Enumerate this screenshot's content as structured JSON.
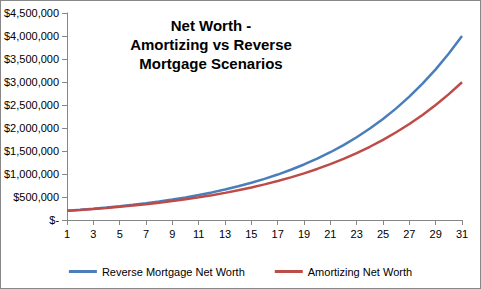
{
  "chart_data": {
    "type": "line",
    "title": "Net Worth -\nAmortizing vs Reverse\nMortgage Scenarios",
    "x": [
      1,
      2,
      3,
      4,
      5,
      6,
      7,
      8,
      9,
      10,
      11,
      12,
      13,
      14,
      15,
      16,
      17,
      18,
      19,
      20,
      21,
      22,
      23,
      24,
      25,
      26,
      27,
      28,
      29,
      30,
      31
    ],
    "xlim": [
      1,
      31
    ],
    "xticks": [
      1,
      3,
      5,
      7,
      9,
      11,
      13,
      15,
      17,
      19,
      21,
      23,
      25,
      27,
      29,
      31
    ],
    "ylim": [
      0,
      4500000
    ],
    "yticks": [
      {
        "value": 0,
        "label": "$-"
      },
      {
        "value": 500000,
        "label": "$500,000"
      },
      {
        "value": 1000000,
        "label": "$1,000,000"
      },
      {
        "value": 1500000,
        "label": "$1,500,000"
      },
      {
        "value": 2000000,
        "label": "$2,000,000"
      },
      {
        "value": 2500000,
        "label": "$2,500,000"
      },
      {
        "value": 3000000,
        "label": "$3,000,000"
      },
      {
        "value": 3500000,
        "label": "$3,500,000"
      },
      {
        "value": 4000000,
        "label": "$4,000,000"
      },
      {
        "value": 4500000,
        "label": "$4,500,000"
      }
    ],
    "grid": false,
    "legend": "bottom",
    "series": [
      {
        "name": "Reverse Mortgage Net Worth",
        "color": "#4a7ebb",
        "marker": "none",
        "line_style": "solid",
        "values": [
          200000,
          221000,
          244000,
          270000,
          298000,
          330000,
          364000,
          402000,
          445000,
          491000,
          543000,
          600000,
          663000,
          732000,
          809000,
          894000,
          988000,
          1092000,
          1207000,
          1333000,
          1473000,
          1628000,
          1799000,
          1988000,
          2197000,
          2427000,
          2682000,
          2964000,
          3275000,
          3619000,
          3999000
        ]
      },
      {
        "name": "Amortizing Net Worth",
        "color": "#be4b48",
        "marker": "none",
        "line_style": "solid",
        "values": [
          200000,
          219000,
          240000,
          262000,
          287000,
          314000,
          344000,
          376000,
          412000,
          450000,
          493000,
          539000,
          590000,
          646000,
          707000,
          774000,
          847000,
          927000,
          1014000,
          1110000,
          1215000,
          1330000,
          1455000,
          1592000,
          1743000,
          1907000,
          2087000,
          2284000,
          2500000,
          2736000,
          2994000
        ]
      }
    ]
  }
}
